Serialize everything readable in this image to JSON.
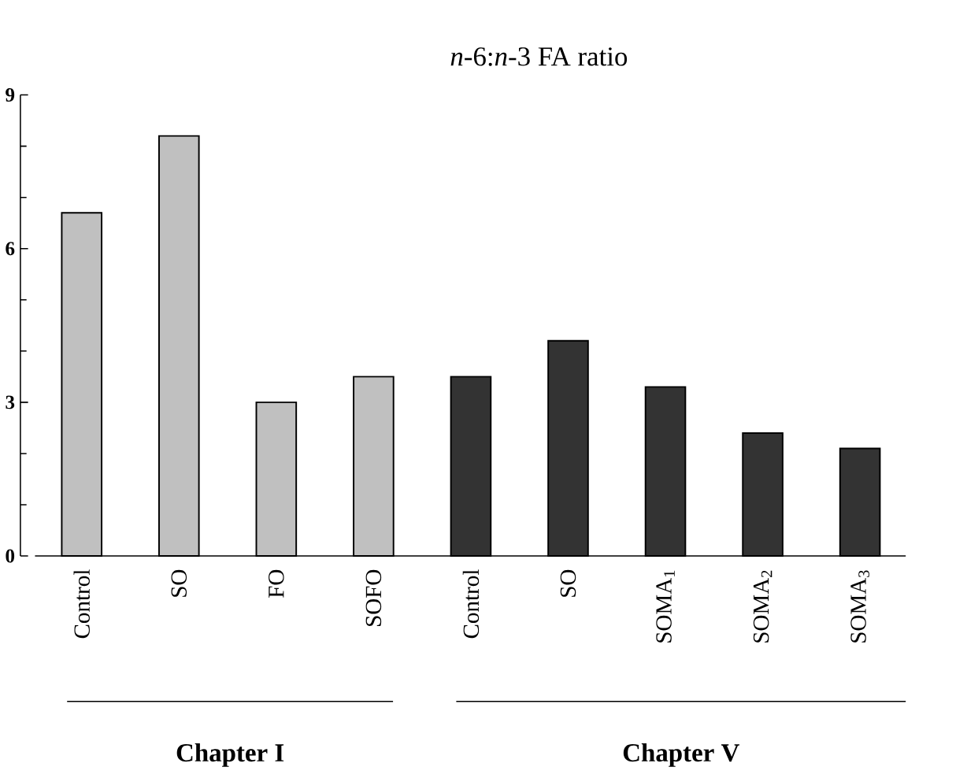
{
  "chart_data": {
    "type": "bar",
    "title": "*n*-6:*n*-3 FA ratio",
    "categories": [
      "Control",
      "SO",
      "FO",
      "SOFO",
      "Control",
      "SO",
      "SOMA$_{1}$",
      "SOMA$_{2}$",
      "SOMA$_{3}$"
    ],
    "series": [
      {
        "color": "#c0c0c0",
        "values": [
          6.7,
          8.2,
          3.0,
          3.5,
          null,
          null,
          null,
          null,
          null
        ]
      },
      {
        "color": "#333333",
        "values": [
          null,
          null,
          null,
          null,
          3.5,
          4.2,
          3.3,
          2.4,
          2.1
        ]
      }
    ],
    "annotations": [
      "Chapter I",
      "Chapter V"
    ],
    "ylim": [
      0,
      9
    ],
    "yticks": [
      0,
      3,
      6,
      9
    ]
  }
}
